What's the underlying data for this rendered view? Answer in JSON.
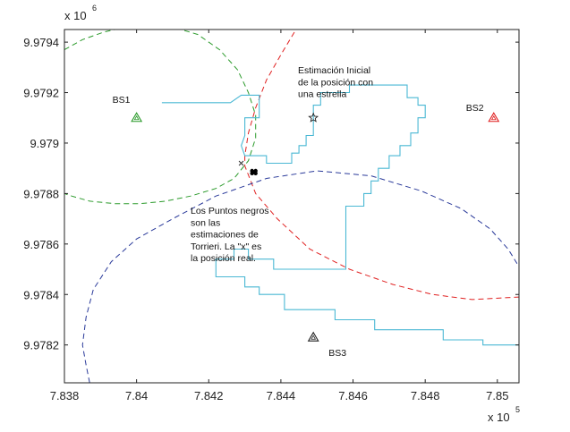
{
  "chart_data": {
    "type": "line",
    "title": "",
    "xlabel": "",
    "ylabel": "",
    "xlim": [
      7.838,
      7.8506
    ],
    "ylim": [
      9.97805,
      9.97945
    ],
    "x_multiplier": {
      "base": "x 10",
      "exp": "5"
    },
    "y_multiplier": {
      "base": "x 10",
      "exp": "6"
    },
    "x_ticks": [
      {
        "value": 7.838,
        "label": "7.838"
      },
      {
        "value": 7.84,
        "label": "7.84"
      },
      {
        "value": 7.842,
        "label": "7.842"
      },
      {
        "value": 7.844,
        "label": "7.844"
      },
      {
        "value": 7.846,
        "label": "7.846"
      },
      {
        "value": 7.848,
        "label": "7.848"
      },
      {
        "value": 7.85,
        "label": "7.85"
      }
    ],
    "y_ticks": [
      {
        "value": 9.9782,
        "label": "9.9782"
      },
      {
        "value": 9.9784,
        "label": "9.9784"
      },
      {
        "value": 9.9786,
        "label": "9.9786"
      },
      {
        "value": 9.9788,
        "label": "9.9788"
      },
      {
        "value": 9.979,
        "label": "9.979"
      },
      {
        "value": 9.9792,
        "label": "9.9792"
      },
      {
        "value": 9.9794,
        "label": "9.9794"
      }
    ],
    "grid": false,
    "colors": {
      "green": "#2a9a2a",
      "red": "#e02020",
      "blue": "#2a3a9a",
      "cyan": "#4ab8d4",
      "black": "#000000"
    },
    "base_stations": [
      {
        "label": "BS1",
        "x": 7.84,
        "y": 9.9791,
        "color": "#2a9a2a"
      },
      {
        "label": "BS2",
        "x": 7.8499,
        "y": 9.9791,
        "color": "#e02020"
      },
      {
        "label": "BS3",
        "x": 7.8449,
        "y": 9.97823,
        "color": "#222222"
      }
    ],
    "circles": [
      {
        "station": "BS1",
        "color": "#2a9a2a",
        "style": "dashed",
        "points": [
          [
            7.838,
            9.97937
          ],
          [
            7.8385,
            9.97941
          ],
          [
            7.8391,
            9.97944
          ],
          [
            7.8397,
            9.97946
          ],
          [
            7.8403,
            9.97947
          ],
          [
            7.841,
            9.97946
          ],
          [
            7.8417,
            9.97943
          ],
          [
            7.8423,
            9.97937
          ],
          [
            7.8428,
            9.97929
          ],
          [
            7.8431,
            9.9792
          ],
          [
            7.8433,
            9.97911
          ],
          [
            7.8433,
            9.97902
          ],
          [
            7.8431,
            9.97893
          ],
          [
            7.8427,
            9.97886
          ],
          [
            7.8422,
            9.97882
          ],
          [
            7.8415,
            9.97879
          ],
          [
            7.8408,
            9.97877
          ],
          [
            7.8401,
            9.97876
          ],
          [
            7.8394,
            9.97876
          ],
          [
            7.8387,
            9.97877
          ],
          [
            7.8382,
            9.97879
          ],
          [
            7.838,
            9.9788
          ]
        ]
      },
      {
        "station": "BS2",
        "color": "#e02020",
        "style": "dashed",
        "points": [
          [
            7.8445,
            9.97947
          ],
          [
            7.844,
            9.97935
          ],
          [
            7.8436,
            9.97925
          ],
          [
            7.8433,
            9.97914
          ],
          [
            7.8431,
            9.97904
          ],
          [
            7.843,
            9.97895
          ],
          [
            7.843,
            9.97891
          ],
          [
            7.8433,
            9.9788
          ],
          [
            7.8439,
            9.9787
          ],
          [
            7.8448,
            9.97858
          ],
          [
            7.8459,
            9.9785
          ],
          [
            7.8471,
            9.97844
          ],
          [
            7.8482,
            9.9784
          ],
          [
            7.8493,
            9.97838
          ],
          [
            7.8506,
            9.97839
          ]
        ]
      },
      {
        "station": "BS3",
        "color": "#2a3a9a",
        "style": "dashed",
        "points": [
          [
            7.8387,
            9.97805
          ],
          [
            7.8386,
            9.97812
          ],
          [
            7.8385,
            9.9782
          ],
          [
            7.8386,
            9.97831
          ],
          [
            7.8388,
            9.97842
          ],
          [
            7.8393,
            9.97853
          ],
          [
            7.84,
            9.97862
          ],
          [
            7.841,
            9.9787
          ],
          [
            7.8422,
            9.97879
          ],
          [
            7.8436,
            9.97886
          ],
          [
            7.845,
            9.97889
          ],
          [
            7.8465,
            9.97887
          ],
          [
            7.8479,
            9.97881
          ],
          [
            7.849,
            9.97874
          ],
          [
            7.8498,
            9.97866
          ],
          [
            7.8503,
            9.97858
          ],
          [
            7.8506,
            9.97851
          ]
        ]
      }
    ],
    "estimation_path": {
      "color": "#4ab8d4",
      "points": [
        [
          7.8407,
          9.97916
        ],
        [
          7.8417,
          9.97916
        ],
        [
          7.8426,
          9.97916
        ],
        [
          7.8429,
          9.97919
        ],
        [
          7.8434,
          9.97919
        ],
        [
          7.8434,
          9.9791
        ],
        [
          7.843,
          9.9791
        ],
        [
          7.843,
          9.97903
        ],
        [
          7.8429,
          9.97899
        ],
        [
          7.843,
          9.97895
        ],
        [
          7.8433,
          9.97895
        ],
        [
          7.8436,
          9.97895
        ],
        [
          7.8436,
          9.97892
        ],
        [
          7.8443,
          9.97892
        ],
        [
          7.8443,
          9.97896
        ],
        [
          7.8445,
          9.97896
        ],
        [
          7.8445,
          9.97899
        ],
        [
          7.8447,
          9.97899
        ],
        [
          7.8447,
          9.97903
        ],
        [
          7.8449,
          9.97903
        ],
        [
          7.8449,
          9.97915
        ],
        [
          7.8451,
          9.97915
        ],
        [
          7.8451,
          9.9792
        ],
        [
          7.8459,
          9.9792
        ],
        [
          7.8459,
          9.97923
        ],
        [
          7.8475,
          9.97923
        ],
        [
          7.8475,
          9.97918
        ],
        [
          7.8478,
          9.97918
        ],
        [
          7.8478,
          9.97915
        ],
        [
          7.848,
          9.97915
        ],
        [
          7.848,
          9.9791
        ],
        [
          7.8478,
          9.9791
        ],
        [
          7.8478,
          9.97904
        ],
        [
          7.8476,
          9.97904
        ],
        [
          7.8476,
          9.97899
        ],
        [
          7.8473,
          9.97899
        ],
        [
          7.8473,
          9.97895
        ],
        [
          7.847,
          9.97895
        ],
        [
          7.847,
          9.9789
        ],
        [
          7.8467,
          9.9789
        ],
        [
          7.8467,
          9.97885
        ],
        [
          7.8465,
          9.97885
        ],
        [
          7.8465,
          9.9788
        ],
        [
          7.8463,
          9.9788
        ],
        [
          7.8463,
          9.97875
        ],
        [
          7.8458,
          9.97875
        ],
        [
          7.8458,
          9.9785
        ],
        [
          7.8438,
          9.9785
        ],
        [
          7.8438,
          9.97854
        ],
        [
          7.8431,
          9.97854
        ],
        [
          7.8431,
          9.97858
        ],
        [
          7.8427,
          9.97858
        ],
        [
          7.8427,
          9.97854
        ],
        [
          7.8422,
          9.97854
        ],
        [
          7.8422,
          9.97847
        ],
        [
          7.843,
          9.97847
        ],
        [
          7.843,
          9.97843
        ],
        [
          7.8434,
          9.97843
        ],
        [
          7.8434,
          9.9784
        ],
        [
          7.8441,
          9.9784
        ],
        [
          7.8441,
          9.97834
        ],
        [
          7.8455,
          9.97834
        ],
        [
          7.8455,
          9.9783
        ],
        [
          7.8466,
          9.9783
        ],
        [
          7.8466,
          9.97826
        ],
        [
          7.8485,
          9.97826
        ],
        [
          7.8485,
          9.97822
        ],
        [
          7.8496,
          9.97822
        ],
        [
          7.8496,
          9.9782
        ],
        [
          7.8506,
          9.9782
        ]
      ]
    },
    "estimated_points": [
      [
        7.8432,
        9.97889
      ],
      [
        7.8433,
        9.97889
      ],
      [
        7.8432,
        9.97888
      ],
      [
        7.8433,
        9.97888
      ],
      [
        7.84325,
        9.978885
      ]
    ],
    "real_position": {
      "x": 7.8429,
      "y": 9.97892,
      "marker": "x"
    },
    "initial_estimate": {
      "x": 7.8449,
      "y": 9.9791,
      "marker": "star"
    },
    "annotations": [
      {
        "id": "initial",
        "lines": [
          "Estimación Inicial",
          "de la posición con",
          "una estrella"
        ],
        "x": 7.8444,
        "y": 9.97935
      },
      {
        "id": "points",
        "lines": [
          "Los Puntos negros",
          "son las",
          "estimaciones de",
          "Torrieri. La \"x\" es",
          "la posición real."
        ],
        "x": 7.8412,
        "y": 9.97866
      }
    ]
  }
}
